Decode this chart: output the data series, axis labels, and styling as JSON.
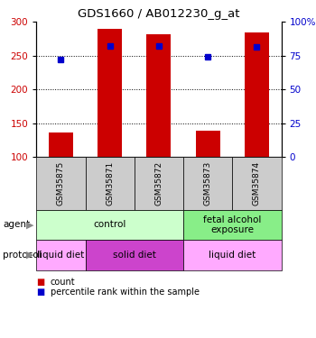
{
  "title": "GDS1660 / AB012230_g_at",
  "samples": [
    "GSM35875",
    "GSM35871",
    "GSM35872",
    "GSM35873",
    "GSM35874"
  ],
  "counts": [
    136,
    290,
    282,
    139,
    285
  ],
  "percentiles": [
    245,
    265,
    265,
    248,
    263
  ],
  "ymin": 100,
  "ymax": 300,
  "yticks_left": [
    100,
    150,
    200,
    250,
    300
  ],
  "yticks_right": [
    0,
    25,
    50,
    75,
    100
  ],
  "bar_color": "#cc0000",
  "dot_color": "#0000cc",
  "agent_groups": [
    {
      "label": "control",
      "start": 0,
      "end": 3,
      "color": "#ccffcc"
    },
    {
      "label": "fetal alcohol\nexposure",
      "start": 3,
      "end": 5,
      "color": "#88ee88"
    }
  ],
  "protocol_groups": [
    {
      "label": "liquid diet",
      "start": 0,
      "end": 1,
      "color": "#ffaaff"
    },
    {
      "label": "solid diet",
      "start": 1,
      "end": 3,
      "color": "#cc44cc"
    },
    {
      "label": "liquid diet",
      "start": 3,
      "end": 5,
      "color": "#ffaaff"
    }
  ],
  "left_label_color": "#cc0000",
  "right_label_color": "#0000cc",
  "sample_box_color": "#cccccc",
  "grid_lines": [
    150,
    200,
    250
  ],
  "legend_items": [
    {
      "color": "#cc0000",
      "label": "count"
    },
    {
      "color": "#0000cc",
      "label": "percentile rank within the sample"
    }
  ]
}
